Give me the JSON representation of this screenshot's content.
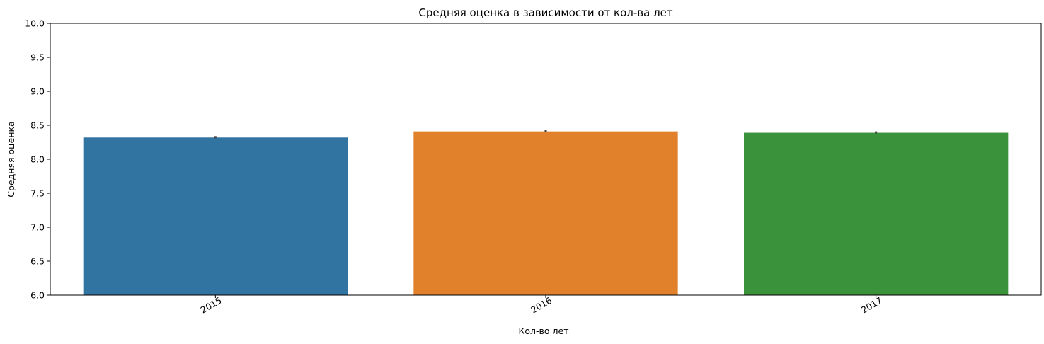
{
  "chart_data": {
    "type": "bar",
    "title": "Средняя оценка в зависимости от кол-ва лет",
    "xlabel": "Кол-во лет",
    "ylabel": "Средняя оценка",
    "categories": [
      "2015",
      "2016",
      "2017"
    ],
    "values": [
      8.32,
      8.41,
      8.39
    ],
    "error": [
      [
        8.31,
        8.34
      ],
      [
        8.4,
        8.43
      ],
      [
        8.38,
        8.41
      ]
    ],
    "ylim": [
      6.0,
      10.0
    ],
    "yticks": [
      "6.0",
      "6.5",
      "7.0",
      "7.5",
      "8.0",
      "8.5",
      "9.0",
      "9.5",
      "10.0"
    ],
    "colors": [
      "#3274a1",
      "#e1812c",
      "#3a923a"
    ],
    "errorbar_color": "#3f3f3f",
    "grid": false,
    "legend": "none"
  }
}
